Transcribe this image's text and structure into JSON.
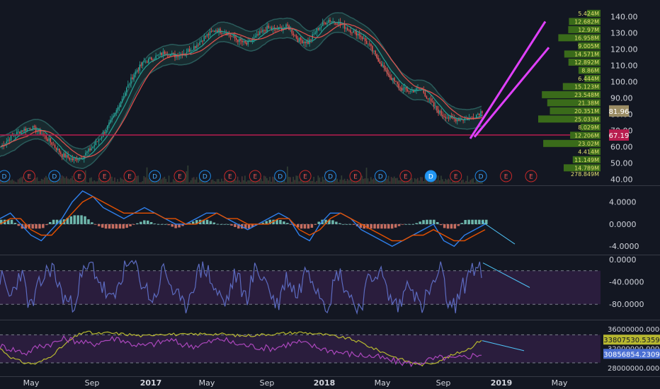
{
  "chart_data": [
    {
      "panel": "price",
      "type": "candlestick",
      "title": "",
      "yticks": [
        "140.00",
        "130.00",
        "120.00",
        "110.00",
        "100.00",
        "90.00",
        "80.00",
        "70.00",
        "60.00",
        "50.00",
        "40.00"
      ],
      "ylim": [
        38,
        145
      ],
      "close": [
        60,
        66,
        70,
        72,
        68,
        62,
        55,
        52,
        54,
        60,
        68,
        78,
        92,
        105,
        112,
        115,
        118,
        116,
        118,
        122,
        128,
        132,
        130,
        126,
        123,
        128,
        133,
        132,
        134,
        126,
        124,
        133,
        138,
        136,
        132,
        129,
        122,
        112,
        103,
        96,
        94,
        96,
        87,
        80,
        77,
        77,
        78,
        82
      ],
      "moving_average_colors": [
        "#26a69a",
        "#ef5350"
      ],
      "current_price": {
        "label": "81.96",
        "value": 81.96,
        "color": "#9a8c64"
      },
      "support_line": {
        "label": "67.19",
        "value": 67.19,
        "color": "#b81d4f"
      },
      "trend_channel_color": "#e040fb",
      "volume_profile": {
        "color": "#3a6b1a",
        "rows": [
          {
            "price": 142,
            "label": "5.424M",
            "value": 5.424
          },
          {
            "price": 137,
            "label": "12.682M",
            "value": 12.682
          },
          {
            "price": 132,
            "label": "12.97M",
            "value": 12.97
          },
          {
            "price": 127,
            "label": "16.958M",
            "value": 16.958
          },
          {
            "price": 122,
            "label": "9.005M",
            "value": 9.005
          },
          {
            "price": 117,
            "label": "14.571M",
            "value": 14.571
          },
          {
            "price": 112,
            "label": "12.892M",
            "value": 12.892
          },
          {
            "price": 107,
            "label": "8.86M",
            "value": 8.86
          },
          {
            "price": 102,
            "label": "6.444M",
            "value": 6.444
          },
          {
            "price": 97,
            "label": "15.123M",
            "value": 15.123
          },
          {
            "price": 92,
            "label": "23.548M",
            "value": 23.548
          },
          {
            "price": 87,
            "label": "21.38M",
            "value": 21.38
          },
          {
            "price": 82,
            "label": "20.351M",
            "value": 20.351
          },
          {
            "price": 77,
            "label": "25.033M",
            "value": 25.033
          },
          {
            "price": 72,
            "label": "8.029M",
            "value": 8.029
          },
          {
            "price": 67,
            "label": "12.206M",
            "value": 12.206
          },
          {
            "price": 62,
            "label": "23.02M",
            "value": 23.02
          },
          {
            "price": 57,
            "label": "4.414M",
            "value": 4.414
          },
          {
            "price": 52,
            "label": "11.149M",
            "value": 11.149
          },
          {
            "price": 47,
            "label": "14.789M",
            "value": 14.789
          }
        ],
        "total_label": "278.849M"
      },
      "events": [
        {
          "label": "D",
          "kind": "dividend"
        },
        {
          "label": "E",
          "kind": "earnings"
        },
        {
          "label": "D",
          "kind": "dividend"
        },
        {
          "label": "E",
          "kind": "earnings"
        },
        {
          "label": "E",
          "kind": "earnings"
        },
        {
          "label": "E",
          "kind": "earnings"
        },
        {
          "label": "D",
          "kind": "dividend"
        },
        {
          "label": "E",
          "kind": "earnings"
        },
        {
          "label": "D",
          "kind": "dividend"
        },
        {
          "label": "E",
          "kind": "earnings"
        },
        {
          "label": "E",
          "kind": "earnings"
        },
        {
          "label": "D",
          "kind": "dividend"
        },
        {
          "label": "E",
          "kind": "earnings"
        },
        {
          "label": "D",
          "kind": "dividend"
        },
        {
          "label": "E",
          "kind": "earnings"
        },
        {
          "label": "D",
          "kind": "dividend"
        },
        {
          "label": "E",
          "kind": "earnings"
        },
        {
          "label": "D",
          "kind": "dividend-selected"
        },
        {
          "label": "E",
          "kind": "earnings"
        },
        {
          "label": "D",
          "kind": "dividend"
        },
        {
          "label": "E",
          "kind": "earnings"
        },
        {
          "label": "E",
          "kind": "earnings"
        }
      ]
    },
    {
      "panel": "macd",
      "type": "line",
      "title": "",
      "yticks": [
        "4.0000",
        "0.0000",
        "-4.0000"
      ],
      "ylim": [
        -5,
        6
      ],
      "series": [
        {
          "values": [
            1,
            2,
            0,
            -2,
            -3,
            -1,
            1,
            4,
            6,
            5,
            3,
            2,
            1,
            2,
            3,
            2,
            1,
            0,
            0,
            1,
            2,
            2,
            1,
            0,
            -1,
            0,
            1,
            2,
            1,
            -2,
            -3,
            0,
            2,
            2,
            1,
            -1,
            -2,
            -3,
            -4,
            -3,
            -2,
            -1,
            0,
            -3,
            -4,
            -2,
            -1,
            0
          ],
          "color": "#2f80ed"
        },
        {
          "values": [
            0,
            1,
            1,
            -1,
            -2,
            -2,
            0,
            2,
            4,
            5,
            4,
            3,
            2,
            2,
            2,
            2,
            1,
            1,
            0,
            0,
            1,
            2,
            1,
            1,
            0,
            0,
            0,
            1,
            1,
            -1,
            -2,
            -1,
            1,
            2,
            1,
            0,
            -1,
            -2,
            -3,
            -3,
            -2,
            -2,
            -1,
            -2,
            -3,
            -3,
            -2,
            -1
          ],
          "color": "#e65100"
        }
      ],
      "arrow_color": "#4fc3f7"
    },
    {
      "panel": "oscillator",
      "type": "line",
      "title": "",
      "yticks": [
        "0.0000",
        "-40.0000",
        "-80.0000"
      ],
      "ylim": [
        -100,
        0
      ],
      "band": [
        -20,
        -80
      ],
      "series": [
        {
          "values": [
            -30,
            -70,
            -20,
            -90,
            -40,
            -10,
            -60,
            -85,
            -30,
            -10,
            -50,
            -80,
            -20,
            -5,
            -45,
            -75,
            -15,
            -60,
            -90,
            -35,
            -10,
            -55,
            -80,
            -25,
            -70,
            -15,
            -40,
            -85,
            -30,
            -65,
            -10,
            -50,
            -80,
            -20,
            -60,
            -90,
            -40,
            -15,
            -70,
            -85,
            -30,
            -90,
            -55,
            -20,
            -95,
            -60,
            -10,
            -25
          ],
          "color": "#5c6bc0"
        }
      ],
      "band_fill": "#2a1d3d",
      "arrow_color": "#4fc3f7"
    },
    {
      "panel": "obv",
      "type": "line",
      "title": "",
      "yticks": [
        "36000000.0000",
        "32000000.0000",
        "28000000.0000"
      ],
      "ylim": [
        26500000,
        37500000
      ],
      "band": [
        34800000,
        29000000
      ],
      "series": [
        {
          "values": [
            32000000,
            30000000,
            29000000,
            28800000,
            30000000,
            32000000,
            34000000,
            35500000,
            35000000,
            35200000,
            35000000,
            34800000,
            34500000,
            35000000,
            35000000,
            34800000,
            34900000,
            35000000,
            35000000,
            34800000,
            34600000,
            34700000,
            34900000,
            35000000,
            35200000,
            35300000,
            35100000,
            34800000,
            34400000,
            34000000,
            33200000,
            32000000,
            31000000,
            30000000,
            29200000,
            28600000,
            29000000,
            30000000,
            31000000,
            32000000,
            33807530
          ],
          "color": "#b7b830"
        },
        {
          "values": [
            32500000,
            31800000,
            31000000,
            32500000,
            33000000,
            34000000,
            33500000,
            32800000,
            33600000,
            34200000,
            33000000,
            32500000,
            33000000,
            33800000,
            32800000,
            32500000,
            33200000,
            34000000,
            33000000,
            32600000,
            32200000,
            32000000,
            32800000,
            33300000,
            32500000,
            31800000,
            31200000,
            30800000,
            30500000,
            30200000,
            29500000,
            29000000,
            28800000,
            29600000,
            30100000,
            29800000,
            30400000,
            30856854
          ],
          "color": "#ab47bc"
        }
      ],
      "value_labels": [
        {
          "label": "33807530.5359",
          "value": 33807530.5359,
          "color": "#b7b830"
        },
        {
          "label": "30856854.2309",
          "value": 30856854.2309,
          "color": "#4a6fd3"
        }
      ],
      "band_fill": "#2a1d3d",
      "arrow_color": "#4fc3f7"
    }
  ],
  "time_axis": {
    "labels": [
      "May",
      "Sep",
      "2017",
      "May",
      "Sep",
      "2018",
      "May",
      "Sep",
      "2019",
      "May"
    ],
    "years": [
      "2017",
      "2018",
      "2019"
    ]
  }
}
